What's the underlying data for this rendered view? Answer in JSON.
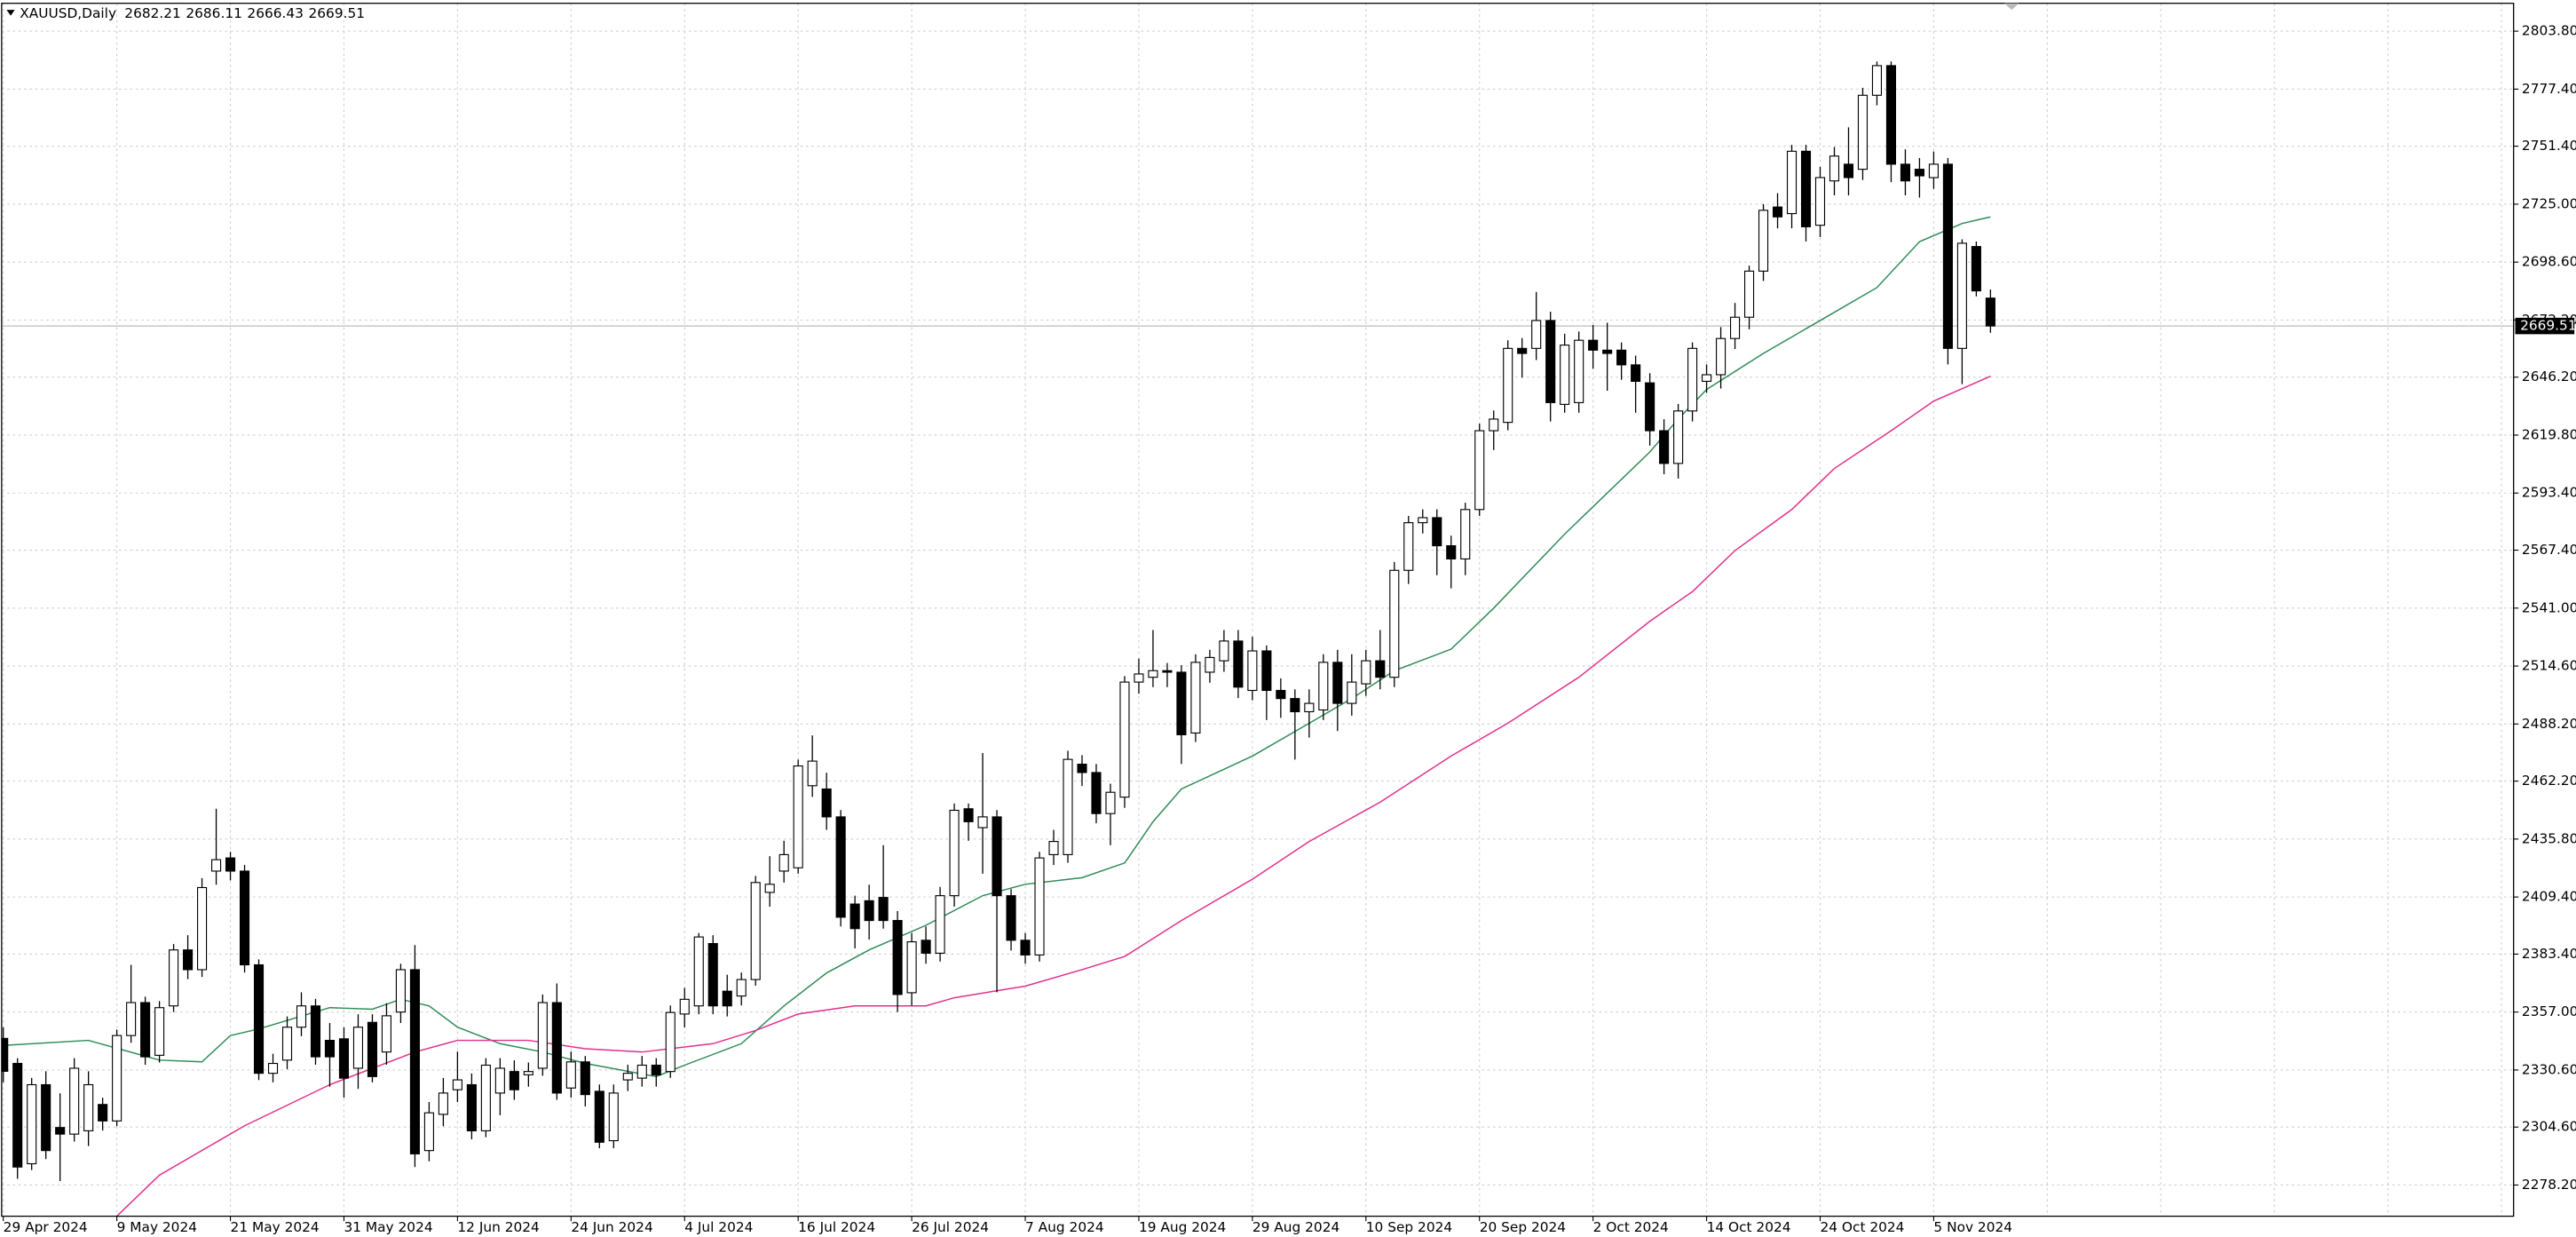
{
  "chart_data": {
    "type": "candlestick",
    "title": "XAUUSD,Daily",
    "categories": [
      "29 Apr 2024",
      null,
      null,
      null,
      null,
      null,
      null,
      null,
      "9 May 2024",
      null,
      null,
      null,
      null,
      null,
      null,
      null,
      "21 May 2024",
      null,
      null,
      null,
      null,
      null,
      null,
      null,
      "31 May 2024",
      null,
      null,
      null,
      null,
      null,
      null,
      null,
      "12 Jun 2024",
      null,
      null,
      null,
      null,
      null,
      null,
      null,
      "24 Jun 2024",
      null,
      null,
      null,
      null,
      null,
      null,
      null,
      "4 Jul 2024",
      null,
      null,
      null,
      null,
      null,
      null,
      null,
      "16 Jul 2024",
      null,
      null,
      null,
      null,
      null,
      null,
      null,
      "26 Jul 2024",
      null,
      null,
      null,
      null,
      null,
      null,
      null,
      "7 Aug 2024",
      null,
      null,
      null,
      null,
      null,
      null,
      null,
      "19 Aug 2024",
      null,
      null,
      null,
      null,
      null,
      null,
      null,
      "29 Aug 2024",
      null,
      null,
      null,
      null,
      null,
      null,
      null,
      "10 Sep 2024",
      null,
      null,
      null,
      null,
      null,
      null,
      null,
      "20 Sep 2024",
      null,
      null,
      null,
      null,
      null,
      null,
      null,
      "2 Oct 2024",
      null,
      null,
      null,
      null,
      null,
      null,
      null,
      "14 Oct 2024",
      null,
      null,
      null,
      null,
      null,
      null,
      null,
      "24 Oct 2024",
      null,
      null,
      null,
      null,
      null,
      null,
      null,
      "5 Nov 2024",
      null,
      null,
      null,
      null
    ],
    "open": [
      2345,
      2333.6,
      2287.9,
      2323.9,
      2304.4,
      2301.4,
      2302.9,
      2314.9,
      2307.4,
      2346.3,
      2361.3,
      2337.3,
      2359.8,
      2385.3,
      2376.3,
      2421.2,
      2427.2,
      2421.2,
      2378.5,
      2329.1,
      2335.1,
      2350.1,
      2359.8,
      2344.1,
      2344.8,
      2331.4,
      2352.3,
      2338.8,
      2357.0,
      2376.3,
      2293.9,
      2310.4,
      2321.6,
      2323.9,
      2302.9,
      2320.1,
      2329.9,
      2328.4,
      2331.4,
      2361.3,
      2322.4,
      2334.3,
      2320.9,
      2298.4,
      2326.1,
      2326.9,
      2332.8,
      2329.9,
      2356.1,
      2359.8,
      2388.2,
      2366.5,
      2364.3,
      2371.8,
      2411.5,
      2421.2,
      2422.7,
      2460.1,
      2458.6,
      2445.9,
      2406.2,
      2407.7,
      2409.2,
      2398.7,
      2365.8,
      2389.7,
      2383.8,
      2410.0,
      2449.6,
      2441,
      2445.9,
      2410.0,
      2389.7,
      2383.0,
      2428.7,
      2428.7,
      2469.9,
      2466.1,
      2447.4,
      2454.9,
      2507.3,
      2509.5,
      2512.5,
      2511.8,
      2484.1,
      2511.8,
      2517.0,
      2526.0,
      2503.5,
      2521.5,
      2503.5,
      2499.8,
      2493.8,
      2494.6,
      2516.3,
      2497.6,
      2506.5,
      2517.0,
      2509.5,
      2558.2,
      2579.9,
      2582.2,
      2569.4,
      2563.4,
      2585.9,
      2621.8,
      2625.6,
      2659.3,
      2659.3,
      2672.0,
      2633.8,
      2634.6,
      2663.0,
      2658.5,
      2658.5,
      2651.8,
      2643.6,
      2621.8,
      2606.9,
      2630.8,
      2644.3,
      2647.3,
      2663.8,
      2673.5,
      2694.5,
      2723.7,
      2720.7,
      2749.1,
      2715.4,
      2735.6,
      2743.2,
      2740.9,
      2774.6,
      2788.1,
      2743.2,
      2740.9,
      2737.1,
      2743.2,
      2659.3,
      2705.7,
      2682.21
    ],
    "high": [
      2350,
      2336,
      2327,
      2330,
      2320,
      2336,
      2330,
      2318,
      2349,
      2378.5,
      2364,
      2362,
      2388,
      2392,
      2418,
      2449.6,
      2430,
      2424,
      2381,
      2338,
      2355,
      2366,
      2363,
      2352,
      2350,
      2356,
      2356,
      2361,
      2379,
      2387.5,
      2316,
      2327,
      2339,
      2329,
      2336,
      2336,
      2335,
      2334,
      2365,
      2370,
      2339,
      2337,
      2324,
      2324,
      2333,
      2337,
      2336,
      2360,
      2368,
      2393,
      2392,
      2374,
      2375,
      2419,
      2428,
      2435,
      2472,
      2483,
      2466,
      2449,
      2410,
      2415,
      2433,
      2403,
      2393,
      2396,
      2414,
      2452,
      2452,
      2475,
      2449,
      2413,
      2393,
      2430,
      2440,
      2476,
      2474,
      2470,
      2461,
      2510,
      2518,
      2531,
      2516,
      2515,
      2520,
      2522,
      2531,
      2531,
      2528,
      2524,
      2509,
      2504,
      2504,
      2520,
      2522,
      2520,
      2522,
      2531,
      2562,
      2583,
      2586,
      2586,
      2574,
      2589,
      2625,
      2631,
      2663,
      2664,
      2685,
      2676,
      2666,
      2667,
      2670,
      2671,
      2662,
      2656,
      2648,
      2627,
      2634,
      2662,
      2652,
      2669,
      2680,
      2697,
      2725,
      2730,
      2752,
      2752,
      2742,
      2751,
      2760,
      2778,
      2790,
      2790,
      2750,
      2746,
      2749,
      2746,
      2709,
      2708,
      2686.11
    ],
    "low": [
      2325,
      2281,
      2285,
      2290,
      2280,
      2298,
      2296,
      2303,
      2305,
      2343,
      2333,
      2334,
      2357,
      2372,
      2373,
      2415,
      2417,
      2375,
      2326,
      2325,
      2331,
      2346,
      2333,
      2323,
      2318,
      2322,
      2325,
      2333,
      2352,
      2286.4,
      2289,
      2305,
      2316,
      2299,
      2300,
      2310,
      2317,
      2323,
      2328,
      2317,
      2318,
      2314,
      2295,
      2295,
      2321,
      2323,
      2323,
      2327,
      2350,
      2356,
      2356,
      2355,
      2360,
      2369,
      2405,
      2416,
      2420,
      2455,
      2440,
      2396,
      2386,
      2390,
      2395,
      2357,
      2360,
      2379,
      2380,
      2405,
      2435,
      2420,
      2366,
      2385,
      2379,
      2380,
      2424,
      2425,
      2460,
      2443,
      2433,
      2450,
      2502,
      2505,
      2505,
      2470,
      2480,
      2507,
      2512,
      2500,
      2499,
      2490,
      2491,
      2472,
      2482,
      2490,
      2485,
      2492,
      2501,
      2504,
      2505,
      2552,
      2575,
      2556,
      2550,
      2556,
      2583,
      2613,
      2622,
      2646,
      2654,
      2626,
      2630,
      2630,
      2650,
      2640,
      2645,
      2630,
      2615,
      2602,
      2600,
      2626,
      2639,
      2641,
      2659,
      2668,
      2690,
      2714,
      2714,
      2708,
      2710,
      2729,
      2729,
      2736,
      2770,
      2735,
      2729,
      2728,
      2732,
      2652,
      2643,
      2683,
      2666.43
    ],
    "close": [
      2330,
      2286.4,
      2323.9,
      2293.9,
      2301.4,
      2331.4,
      2323.9,
      2307.4,
      2346.3,
      2361.3,
      2336.6,
      2359.0,
      2385.3,
      2376.3,
      2413.7,
      2426.4,
      2421.2,
      2378.5,
      2329.1,
      2333.6,
      2350.1,
      2359.8,
      2336.6,
      2336.6,
      2326.9,
      2350.1,
      2327.6,
      2355.3,
      2376.3,
      2292.4,
      2311.1,
      2320.1,
      2326.1,
      2302.9,
      2332.8,
      2331.4,
      2321.6,
      2329.9,
      2361.3,
      2320.1,
      2334.3,
      2319.4,
      2297.7,
      2320.1,
      2329.1,
      2332.8,
      2328.4,
      2356.8,
      2362.8,
      2391.2,
      2359.8,
      2359.8,
      2371.8,
      2416.0,
      2415.2,
      2428.7,
      2469.1,
      2471.3,
      2445.9,
      2400.2,
      2395.0,
      2398.7,
      2398.7,
      2365.0,
      2389.0,
      2383.8,
      2410.0,
      2448.9,
      2443.7,
      2445.9,
      2410.0,
      2389.7,
      2383.0,
      2427.2,
      2434.7,
      2472.1,
      2466.1,
      2447.4,
      2457.1,
      2507.3,
      2511.0,
      2512.5,
      2511.8,
      2483.3,
      2516.3,
      2518.5,
      2526.0,
      2505.0,
      2521.5,
      2503.5,
      2499.8,
      2493.8,
      2497.6,
      2516.3,
      2497.6,
      2507.3,
      2517.0,
      2509.5,
      2558.2,
      2579.9,
      2582.2,
      2569.4,
      2563.4,
      2585.9,
      2621.8,
      2627.1,
      2659.3,
      2657.0,
      2672.0,
      2634.6,
      2660.8,
      2663.0,
      2658.5,
      2657.0,
      2651.8,
      2644.3,
      2621.8,
      2606.9,
      2630.8,
      2659.3,
      2647.3,
      2663.8,
      2673.5,
      2694.5,
      2722.2,
      2719.2,
      2749.1,
      2714.7,
      2737.1,
      2746.9,
      2737.1,
      2774.6,
      2788.1,
      2743.2,
      2735.6,
      2737.9,
      2743.2,
      2659.3,
      2707.2,
      2685.5,
      2669.51
    ],
    "series": [
      {
        "color": "#2e8b57",
        "x": [
          0,
          6,
          11,
          14,
          16,
          18,
          23,
          26,
          28,
          30,
          32,
          35,
          38,
          41,
          46,
          48,
          52,
          55,
          58,
          61,
          65,
          69,
          72,
          76,
          79,
          81,
          83,
          88,
          91,
          95,
          98,
          102,
          105,
          110,
          116,
          118,
          120,
          124,
          126,
          128,
          132,
          135,
          138,
          140
        ],
        "values": [
          2341.8,
          2344.1,
          2335.1,
          2334.3,
          2346.3,
          2349.3,
          2359.0,
          2358.3,
          2362.8,
          2359.8,
          2350.1,
          2342.6,
          2338.8,
          2333.6,
          2327.6,
          2332.8,
          2342.6,
          2359.8,
          2374.8,
          2385.3,
          2396.5,
          2410.0,
          2415.2,
          2418.2,
          2424.9,
          2443.7,
          2458.6,
          2473.6,
          2484.8,
          2499.8,
          2512.5,
          2522.3,
          2541.0,
          2574.7,
          2612.1,
          2627.1,
          2640.6,
          2657.0,
          2664.5,
          2672.0,
          2687.0,
          2707.9,
          2716.2,
          2719.2
        ]
      },
      {
        "color": "#e0308a",
        "x": [
          8,
          11,
          17,
          23,
          29,
          32,
          37,
          41,
          45,
          50,
          53,
          56,
          60,
          65,
          67,
          72,
          76,
          79,
          83,
          88,
          92,
          97,
          102,
          106,
          111,
          116,
          119,
          122,
          126,
          129,
          133,
          136,
          140
        ],
        "values": [
          2264.0,
          2282.7,
          2305.2,
          2323.9,
          2338.8,
          2344.1,
          2344.1,
          2340.3,
          2338.8,
          2342.6,
          2348.6,
          2356.1,
          2359.8,
          2359.8,
          2363.5,
          2368.8,
          2376.3,
          2382.3,
          2398.7,
          2417.5,
          2434.7,
          2452.6,
          2473.6,
          2488.6,
          2509.5,
          2535.0,
          2548.5,
          2567.2,
          2585.9,
          2604.6,
          2621.8,
          2635.3,
          2646.6
        ]
      }
    ],
    "ylim": [
      2264.0,
      2816.5
    ],
    "yticks": [
      {
        "value": 2278.2,
        "label": "2278.20"
      },
      {
        "value": 2304.6,
        "label": "2304.60"
      },
      {
        "value": 2330.6,
        "label": "2330.60"
      },
      {
        "value": 2357,
        "label": "2357.00"
      },
      {
        "value": 2383.4,
        "label": "2383.40"
      },
      {
        "value": 2409.4,
        "label": "2409.40"
      },
      {
        "value": 2435.8,
        "label": "2435.80"
      },
      {
        "value": 2462.2,
        "label": "2462.20"
      },
      {
        "value": 2488.2,
        "label": "2488.20"
      },
      {
        "value": 2514.6,
        "label": "2514.60"
      },
      {
        "value": 2541,
        "label": "2541.00"
      },
      {
        "value": 2567.4,
        "label": "2567.40"
      },
      {
        "value": 2593.4,
        "label": "2593.40"
      },
      {
        "value": 2619.8,
        "label": "2619.80"
      },
      {
        "value": 2646.2,
        "label": "2646.20"
      },
      {
        "value": 2672.2,
        "label": "2672.20"
      },
      {
        "value": 2698.6,
        "label": "2698.60"
      },
      {
        "value": 2725,
        "label": "2725.00"
      },
      {
        "value": 2751.4,
        "label": "2751.40"
      },
      {
        "value": 2777.4,
        "label": "2777.40"
      },
      {
        "value": 2803.8,
        "label": "2803.80"
      }
    ],
    "grid": true
  }
}
